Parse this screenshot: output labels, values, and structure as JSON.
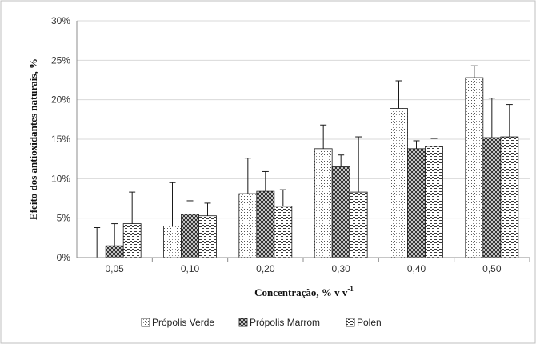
{
  "chart_data": {
    "type": "bar",
    "title": "",
    "xlabel": "Concentração, % v v",
    "xlabel_superscript": "-1",
    "ylabel": "Efeito dos antioxidantes naturais, %",
    "ylim": [
      0,
      30
    ],
    "y_ticks": [
      "0%",
      "5%",
      "10%",
      "15%",
      "20%",
      "25%",
      "30%"
    ],
    "y_tick_values": [
      0,
      5,
      10,
      15,
      20,
      25,
      30
    ],
    "categories": [
      "0,05",
      "0,10",
      "0,20",
      "0,30",
      "0,40",
      "0,50"
    ],
    "series": [
      {
        "name": "Própolis Verde",
        "pattern": "dots",
        "values": [
          0,
          4.0,
          8.1,
          13.8,
          18.9,
          22.8
        ],
        "error": [
          3.8,
          5.5,
          4.5,
          3.0,
          3.5,
          1.5
        ]
      },
      {
        "name": "Própolis Marrom",
        "pattern": "crosshatch",
        "values": [
          1.5,
          5.5,
          8.4,
          11.5,
          13.8,
          15.2
        ],
        "error": [
          2.8,
          1.7,
          2.5,
          1.5,
          1.0,
          5.0
        ]
      },
      {
        "name": "Polen",
        "pattern": "dashes",
        "values": [
          4.3,
          5.3,
          6.5,
          8.3,
          14.1,
          15.3
        ],
        "error": [
          4.0,
          1.6,
          2.1,
          7.0,
          1.0,
          4.1
        ]
      }
    ],
    "grid": true,
    "legend_position": "bottom"
  },
  "colors": {
    "background": "#ffffff",
    "border": "#bfbfbf",
    "gridline": "#d9d9d9",
    "axis": "#8c8c8c",
    "bar_outline": "#1a1a1a",
    "error_bar": "#1a1a1a"
  }
}
